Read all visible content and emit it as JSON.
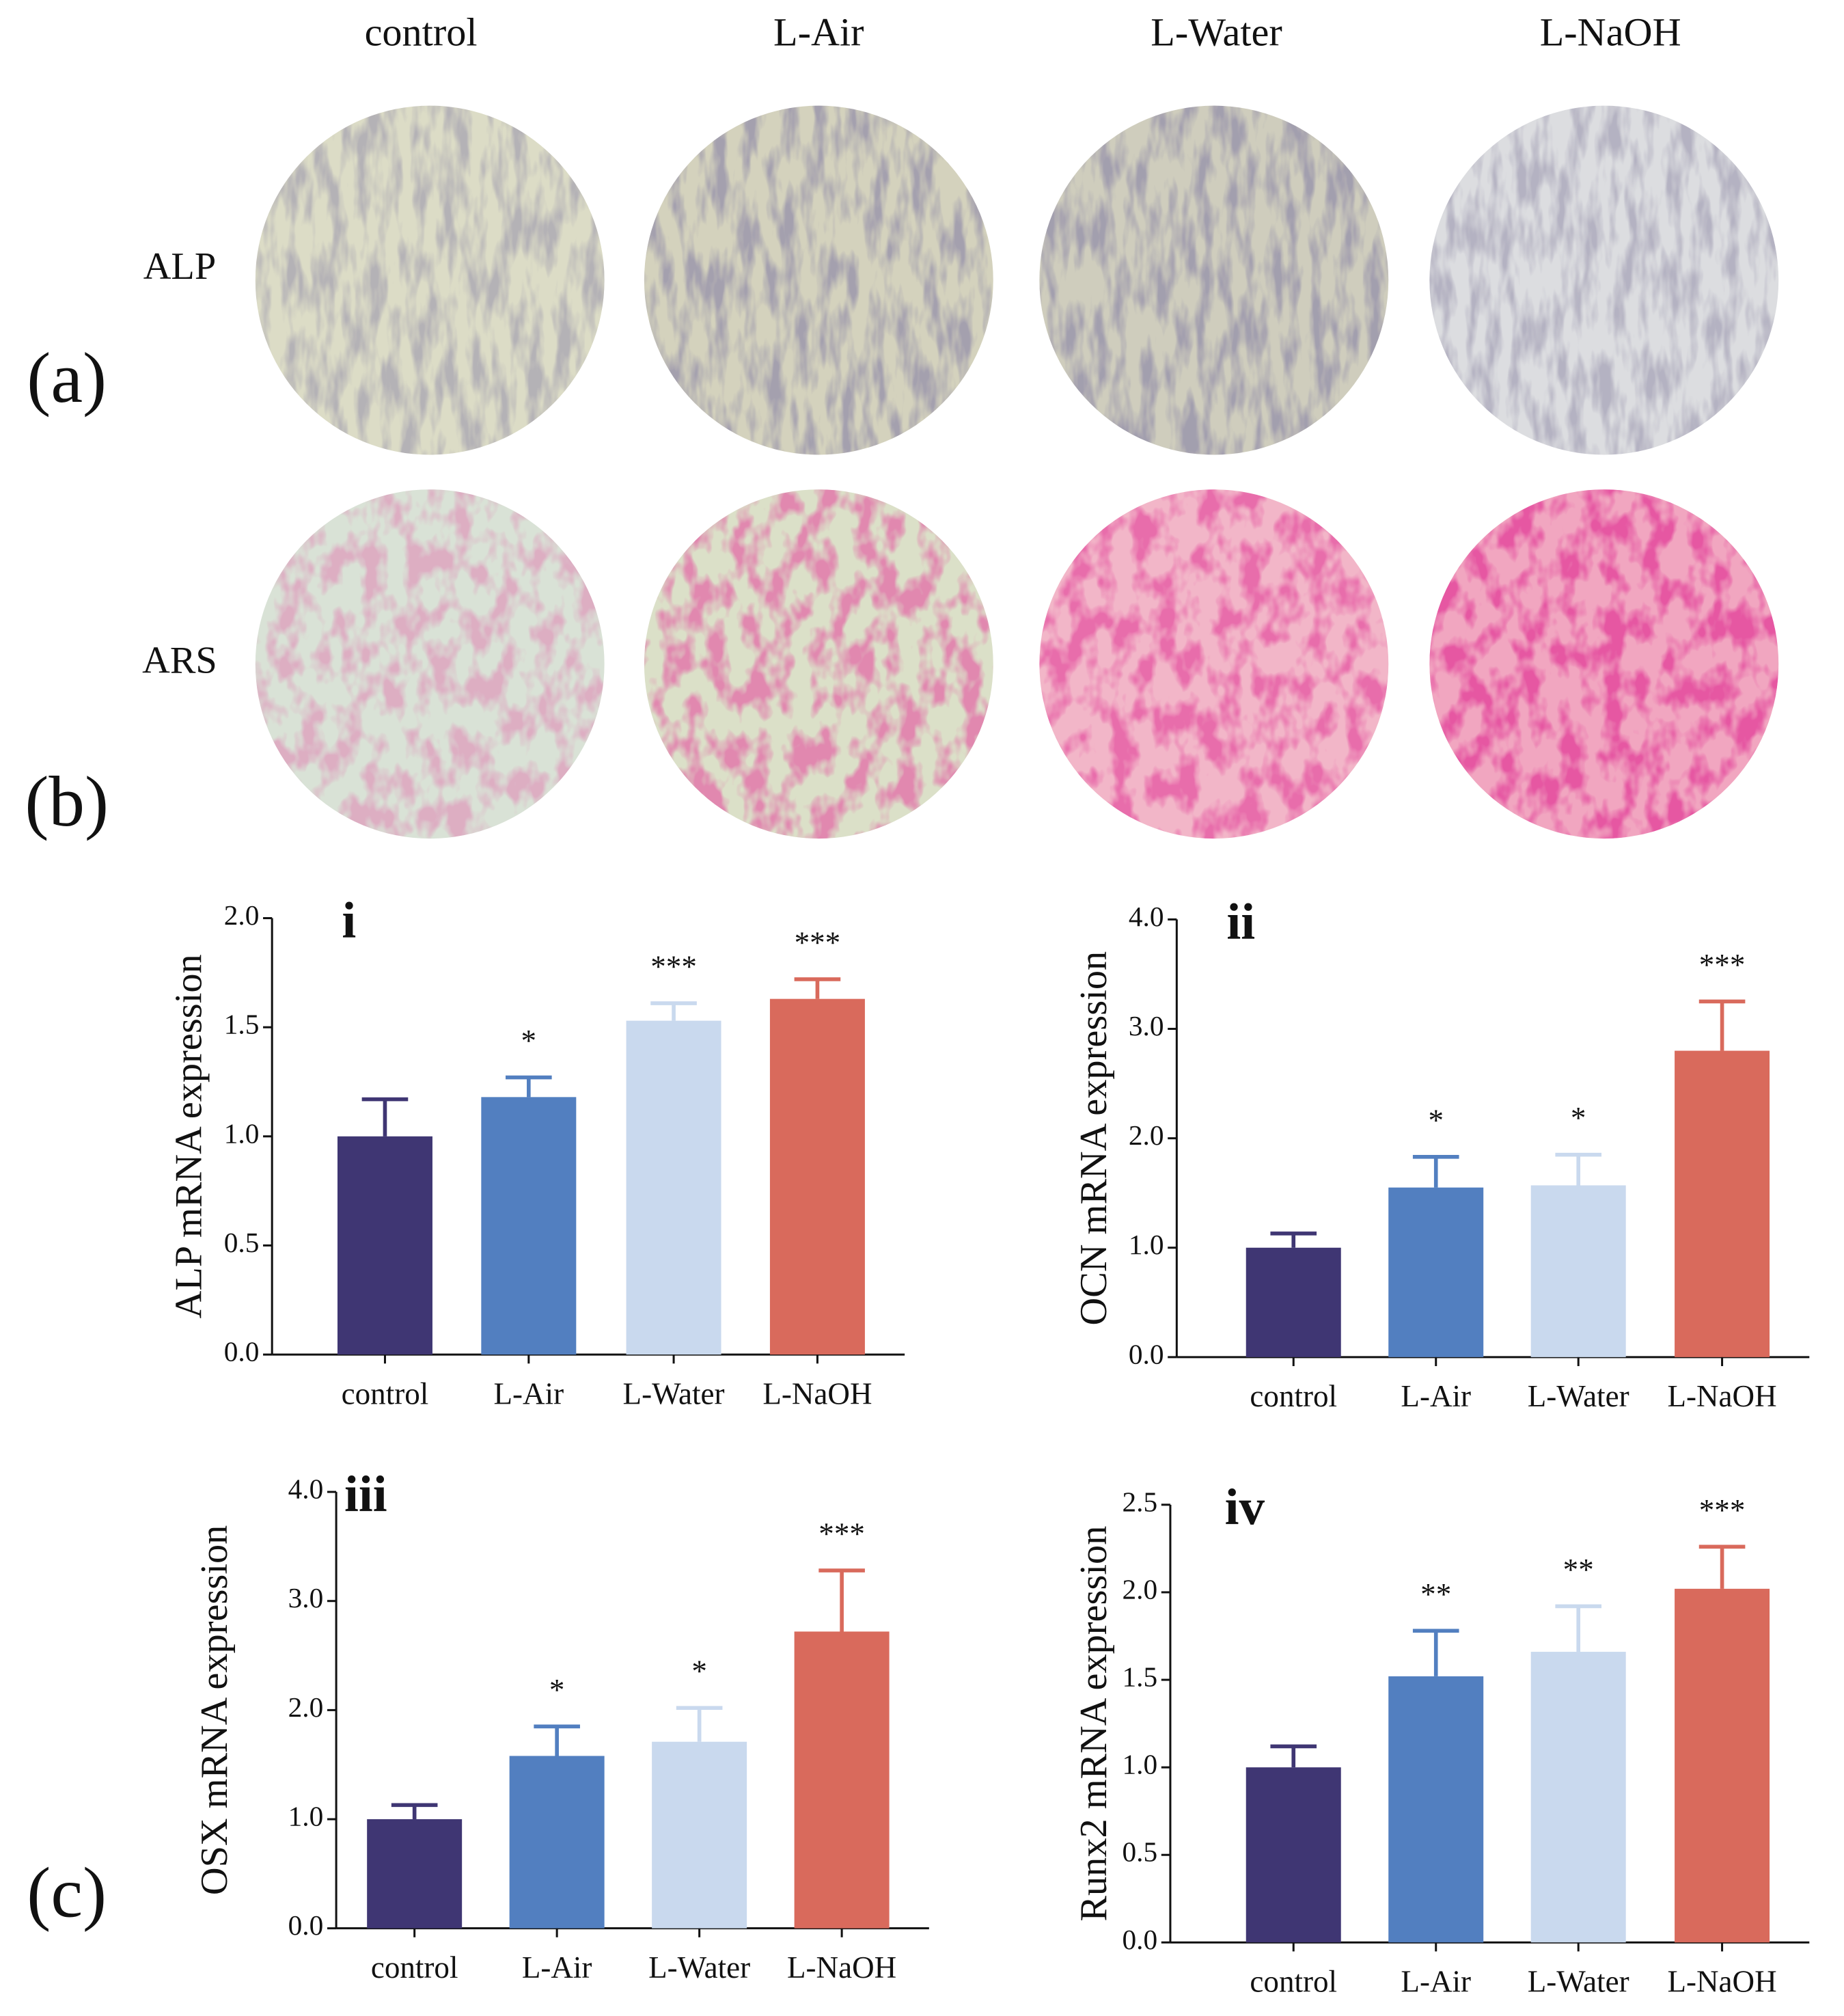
{
  "figure": {
    "panel_labels": [
      "(a)",
      "(b)",
      "(c)"
    ],
    "column_labels": [
      "control",
      "L-Air",
      "L-Water",
      "L-NaOH"
    ],
    "row_labels": [
      "ALP",
      "ARS"
    ]
  },
  "chart_data": [
    {
      "type": "bar",
      "title": "i",
      "ylabel": "ALP mRNA expression",
      "categories": [
        "control",
        "L-Air",
        "L-Water",
        "L-NaOH"
      ],
      "values": [
        1.0,
        1.18,
        1.53,
        1.63
      ],
      "errors": [
        0.17,
        0.09,
        0.08,
        0.09
      ],
      "annotations": [
        null,
        "*",
        "***",
        "***"
      ],
      "colors": [
        "#3f3673",
        "#527fc0",
        "#c9d9ee",
        "#d96a5c"
      ],
      "ylim": [
        0,
        2
      ],
      "yticks": [
        {
          "value": 0,
          "label": "0.0"
        },
        {
          "value": 0.5,
          "label": "0.5"
        },
        {
          "value": 1,
          "label": "1.0"
        },
        {
          "value": 1.5,
          "label": "1.5"
        },
        {
          "value": 2,
          "label": "2.0"
        }
      ]
    },
    {
      "type": "bar",
      "title": "ii",
      "ylabel": "OCN mRNA expression",
      "categories": [
        "control",
        "L-Air",
        "L-Water",
        "L-NaOH"
      ],
      "values": [
        1.0,
        1.55,
        1.57,
        2.8
      ],
      "errors": [
        0.13,
        0.28,
        0.28,
        0.45
      ],
      "annotations": [
        null,
        "*",
        "*",
        "***"
      ],
      "colors": [
        "#3f3673",
        "#527fc0",
        "#c9d9ee",
        "#d96a5c"
      ],
      "ylim": [
        0,
        4
      ],
      "yticks": [
        {
          "value": 0,
          "label": "0.0"
        },
        {
          "value": 1,
          "label": "1.0"
        },
        {
          "value": 2,
          "label": "2.0"
        },
        {
          "value": 3,
          "label": "3.0"
        },
        {
          "value": 4,
          "label": "4.0"
        }
      ]
    },
    {
      "type": "bar",
      "title": "iii",
      "ylabel": "OSX mRNA expression",
      "categories": [
        "control",
        "L-Air",
        "L-Water",
        "L-NaOH"
      ],
      "values": [
        1.0,
        1.58,
        1.71,
        2.72
      ],
      "errors": [
        0.13,
        0.27,
        0.31,
        0.56
      ],
      "annotations": [
        null,
        "*",
        "*",
        "***"
      ],
      "colors": [
        "#3f3673",
        "#527fc0",
        "#c9d9ee",
        "#d96a5c"
      ],
      "ylim": [
        0,
        4
      ],
      "yticks": [
        {
          "value": 0,
          "label": "0.0"
        },
        {
          "value": 1,
          "label": "1.0"
        },
        {
          "value": 2,
          "label": "2.0"
        },
        {
          "value": 3,
          "label": "3.0"
        },
        {
          "value": 4,
          "label": "4.0"
        }
      ]
    },
    {
      "type": "bar",
      "title": "iv",
      "ylabel": "Runx2 mRNA expression",
      "categories": [
        "control",
        "L-Air",
        "L-Water",
        "L-NaOH"
      ],
      "values": [
        1.0,
        1.52,
        1.66,
        2.02
      ],
      "errors": [
        0.12,
        0.26,
        0.26,
        0.24
      ],
      "annotations": [
        null,
        "**",
        "**",
        "***"
      ],
      "colors": [
        "#3f3673",
        "#527fc0",
        "#c9d9ee",
        "#d96a5c"
      ],
      "ylim": [
        0,
        2.5
      ],
      "yticks": [
        {
          "value": 0,
          "label": "0.0"
        },
        {
          "value": 0.5,
          "label": "0.5"
        },
        {
          "value": 1,
          "label": "1.0"
        },
        {
          "value": 1.5,
          "label": "1.5"
        },
        {
          "value": 2,
          "label": "2.0"
        },
        {
          "value": 2.5,
          "label": "2.5"
        }
      ]
    }
  ]
}
